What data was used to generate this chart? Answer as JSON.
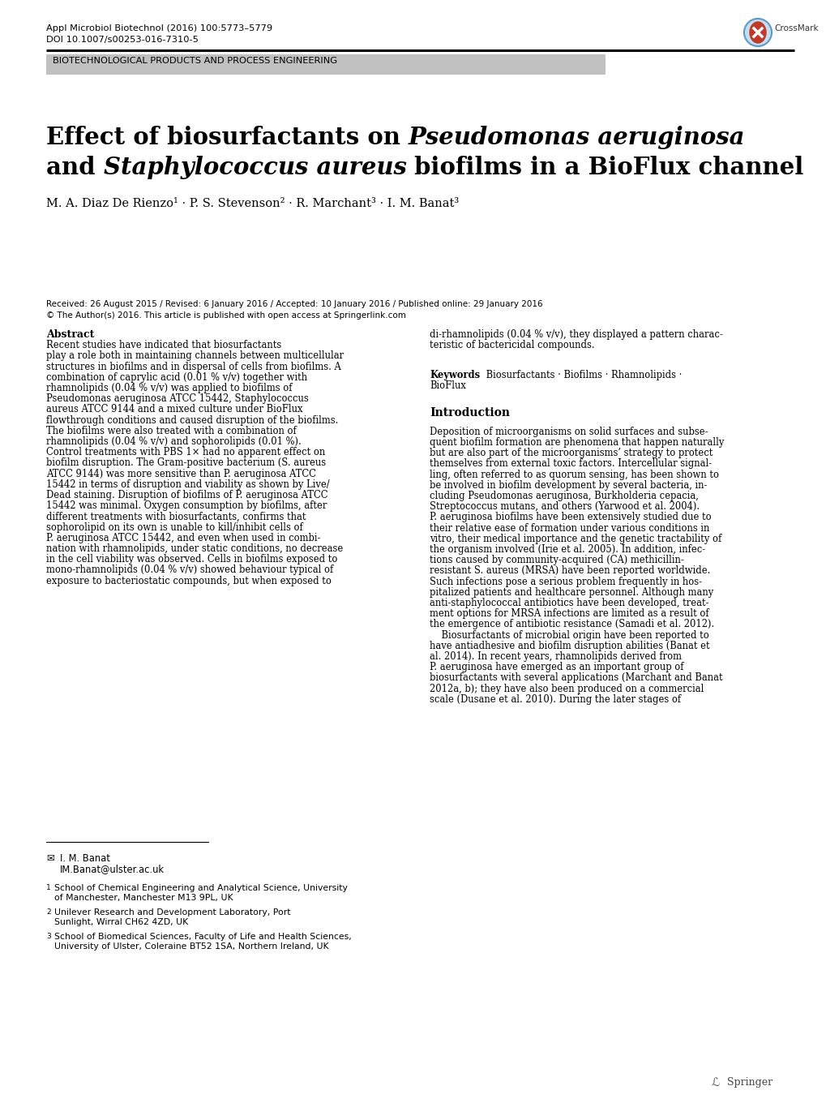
{
  "bg_color": "#ffffff",
  "header_journal": "Appl Microbiol Biotechnol (2016) 100:5773–5779",
  "header_doi": "DOI 10.1007/s00253-016-7310-5",
  "section_banner": "BIOTECHNOLOGICAL PRODUCTS AND PROCESS ENGINEERING",
  "abstract_left_lines": [
    "Recent studies have indicated that biosurfactants",
    "play a role both in maintaining channels between multicellular",
    "structures in biofilms and in dispersal of cells from biofilms. A",
    "combination of caprylic acid (0.01 % v/v) together with",
    "rhamnolipids (0.04 % v/v) was applied to biofilms of",
    "Pseudomonas aeruginosa ATCC 15442, Staphylococcus",
    "aureus ATCC 9144 and a mixed culture under BioFlux",
    "flowthrough conditions and caused disruption of the biofilms.",
    "The biofilms were also treated with a combination of",
    "rhamnolipids (0.04 % v/v) and sophorolipids (0.01 %).",
    "Control treatments with PBS 1× had no apparent effect on",
    "biofilm disruption. The Gram-positive bacterium (S. aureus",
    "ATCC 9144) was more sensitive than P. aeruginosa ATCC",
    "15442 in terms of disruption and viability as shown by Live/",
    "Dead staining. Disruption of biofilms of P. aeruginosa ATCC",
    "15442 was minimal. Oxygen consumption by biofilms, after",
    "different treatments with biosurfactants, confirms that",
    "sophorolipid on its own is unable to kill/inhibit cells of",
    "P. aeruginosa ATCC 15442, and even when used in combi-",
    "nation with rhamnolipids, under static conditions, no decrease",
    "in the cell viability was observed. Cells in biofilms exposed to",
    "mono-rhamnolipids (0.04 % v/v) showed behaviour typical of",
    "exposure to bacteriostatic compounds, but when exposed to"
  ],
  "abstract_right_lines": [
    "di-rhamnolipids (0.04 % v/v), they displayed a pattern charac-",
    "teristic of bactericidal compounds."
  ],
  "keywords_line1": "Biosurfactants · Biofilms · Rhamnolipids ·",
  "keywords_line2": "BioFlux",
  "intro_lines": [
    "Deposition of microorganisms on solid surfaces and subse-",
    "quent biofilm formation are phenomena that happen naturally",
    "but are also part of the microorganisms’ strategy to protect",
    "themselves from external toxic factors. Intercellular signal-",
    "ling, often referred to as quorum sensing, has been shown to",
    "be involved in biofilm development by several bacteria, in-",
    "cluding Pseudomonas aeruginosa, Burkholderia cepacia,",
    "Streptococcus mutans, and others (Yarwood et al. 2004).",
    "P. aeruginosa biofilms have been extensively studied due to",
    "their relative ease of formation under various conditions in",
    "vitro, their medical importance and the genetic tractability of",
    "the organism involved (Irie et al. 2005). In addition, infec-",
    "tions caused by community-acquired (CA) methicillin-",
    "resistant S. aureus (MRSA) have been reported worldwide.",
    "Such infections pose a serious problem frequently in hos-",
    "pitalized patients and healthcare personnel. Although many",
    "anti-staphylococcal antibiotics have been developed, treat-",
    "ment options for MRSA infections are limited as a result of",
    "the emergence of antibiotic resistance (Samadi et al. 2012).",
    "    Biosurfactants of microbial origin have been reported to",
    "have antiadhesive and biofilm disruption abilities (Banat et",
    "al. 2014). In recent years, rhamnolipids derived from",
    "P. aeruginosa have emerged as an important group of",
    "biosurfactants with several applications (Marchant and Banat",
    "2012a, b); they have also been produced on a commercial",
    "scale (Dusane et al. 2010). During the later stages of"
  ],
  "footnote_name": "I. M. Banat",
  "footnote_email": "IM.Banat@ulster.ac.uk",
  "footnote1_super": "1",
  "footnote1_text": "School of Chemical Engineering and Analytical Science, University\nof Manchester, Manchester M13 9PL, UK",
  "footnote2_super": "2",
  "footnote2_text": "Unilever Research and Development Laboratory, Port\nSunlight, Wirral CH62 4ZD, UK",
  "footnote3_super": "3",
  "footnote3_text": "School of Biomedical Sciences, Faculty of Life and Health Sciences,\nUniversity of Ulster, Coleraine BT52 1SA, Northern Ireland, UK",
  "springer_text": "Springer",
  "received_line": "Received: 26 August 2015 / Revised: 6 January 2016 / Accepted: 10 January 2016 / Published online: 29 January 2016",
  "copyright_line": "© The Author(s) 2016. This article is published with open access at Springerlink.com",
  "authors_line": "M. A. Diaz De Rienzo",
  "authors_super1": "1",
  "authors_mid1": " · P. S. Stevenson",
  "authors_super2": "2",
  "authors_mid2": " · R. Marchant",
  "authors_super3": "3",
  "authors_mid3": " · I. M. Banat",
  "authors_super4": "3"
}
